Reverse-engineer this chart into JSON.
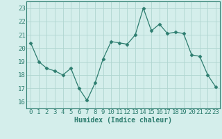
{
  "x": [
    0,
    1,
    2,
    3,
    4,
    5,
    6,
    7,
    8,
    9,
    10,
    11,
    12,
    13,
    14,
    15,
    16,
    17,
    18,
    19,
    20,
    21,
    22,
    23
  ],
  "y": [
    20.4,
    19.0,
    18.5,
    18.3,
    18.0,
    18.5,
    17.0,
    16.1,
    17.4,
    19.2,
    20.5,
    20.4,
    20.3,
    21.0,
    23.0,
    21.3,
    21.8,
    21.1,
    21.2,
    21.1,
    19.5,
    19.4,
    18.0,
    17.1
  ],
  "line_color": "#2d7d6f",
  "marker": "D",
  "marker_size": 2.5,
  "bg_color": "#d4eeeb",
  "grid_color": "#b0d5d0",
  "xlabel": "Humidex (Indice chaleur)",
  "ylim": [
    15.5,
    23.5
  ],
  "yticks": [
    16,
    17,
    18,
    19,
    20,
    21,
    22,
    23
  ],
  "xticks": [
    0,
    1,
    2,
    3,
    4,
    5,
    6,
    7,
    8,
    9,
    10,
    11,
    12,
    13,
    14,
    15,
    16,
    17,
    18,
    19,
    20,
    21,
    22,
    23
  ],
  "xlabel_fontsize": 7,
  "tick_fontsize": 6.5
}
